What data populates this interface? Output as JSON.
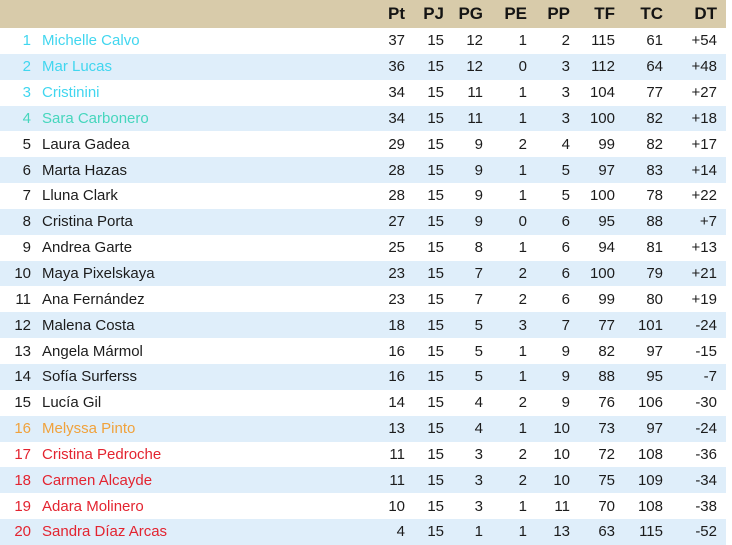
{
  "table": {
    "columns": [
      "Pt",
      "PJ",
      "PG",
      "PE",
      "PP",
      "TF",
      "TC",
      "DT"
    ],
    "rows": [
      {
        "rank": "1",
        "name": "Michelle Calvo",
        "zone": "cyan",
        "stats": [
          "37",
          "15",
          "12",
          "1",
          "2",
          "115",
          "61",
          "+54"
        ]
      },
      {
        "rank": "2",
        "name": "Mar Lucas",
        "zone": "cyan",
        "stats": [
          "36",
          "15",
          "12",
          "0",
          "3",
          "112",
          "64",
          "+48"
        ]
      },
      {
        "rank": "3",
        "name": "Cristinini",
        "zone": "cyan",
        "stats": [
          "34",
          "15",
          "11",
          "1",
          "3",
          "104",
          "77",
          "+27"
        ]
      },
      {
        "rank": "4",
        "name": "Sara Carbonero",
        "zone": "teal",
        "stats": [
          "34",
          "15",
          "11",
          "1",
          "3",
          "100",
          "82",
          "+18"
        ]
      },
      {
        "rank": "5",
        "name": "Laura Gadea",
        "zone": "none",
        "stats": [
          "29",
          "15",
          "9",
          "2",
          "4",
          "99",
          "82",
          "+17"
        ]
      },
      {
        "rank": "6",
        "name": "Marta Hazas",
        "zone": "none",
        "stats": [
          "28",
          "15",
          "9",
          "1",
          "5",
          "97",
          "83",
          "+14"
        ]
      },
      {
        "rank": "7",
        "name": "Lluna Clark",
        "zone": "none",
        "stats": [
          "28",
          "15",
          "9",
          "1",
          "5",
          "100",
          "78",
          "+22"
        ]
      },
      {
        "rank": "8",
        "name": "Cristina Porta",
        "zone": "none",
        "stats": [
          "27",
          "15",
          "9",
          "0",
          "6",
          "95",
          "88",
          "+7"
        ]
      },
      {
        "rank": "9",
        "name": "Andrea Garte",
        "zone": "none",
        "stats": [
          "25",
          "15",
          "8",
          "1",
          "6",
          "94",
          "81",
          "+13"
        ]
      },
      {
        "rank": "10",
        "name": "Maya Pixelskaya",
        "zone": "none",
        "stats": [
          "23",
          "15",
          "7",
          "2",
          "6",
          "100",
          "79",
          "+21"
        ]
      },
      {
        "rank": "11",
        "name": "Ana Fernández",
        "zone": "none",
        "stats": [
          "23",
          "15",
          "7",
          "2",
          "6",
          "99",
          "80",
          "+19"
        ]
      },
      {
        "rank": "12",
        "name": "Malena Costa",
        "zone": "none",
        "stats": [
          "18",
          "15",
          "5",
          "3",
          "7",
          "77",
          "101",
          "-24"
        ]
      },
      {
        "rank": "13",
        "name": "Angela Mármol",
        "zone": "none",
        "stats": [
          "16",
          "15",
          "5",
          "1",
          "9",
          "82",
          "97",
          "-15"
        ]
      },
      {
        "rank": "14",
        "name": "Sofía Surferss",
        "zone": "none",
        "stats": [
          "16",
          "15",
          "5",
          "1",
          "9",
          "88",
          "95",
          "-7"
        ]
      },
      {
        "rank": "15",
        "name": "Lucía Gil",
        "zone": "none",
        "stats": [
          "14",
          "15",
          "4",
          "2",
          "9",
          "76",
          "106",
          "-30"
        ]
      },
      {
        "rank": "16",
        "name": "Melyssa Pinto",
        "zone": "orange",
        "stats": [
          "13",
          "15",
          "4",
          "1",
          "10",
          "73",
          "97",
          "-24"
        ]
      },
      {
        "rank": "17",
        "name": "Cristina Pedroche",
        "zone": "red",
        "stats": [
          "11",
          "15",
          "3",
          "2",
          "10",
          "72",
          "108",
          "-36"
        ]
      },
      {
        "rank": "18",
        "name": "Carmen Alcayde",
        "zone": "red",
        "stats": [
          "11",
          "15",
          "3",
          "2",
          "10",
          "75",
          "109",
          "-34"
        ]
      },
      {
        "rank": "19",
        "name": "Adara Molinero",
        "zone": "red",
        "stats": [
          "10",
          "15",
          "3",
          "1",
          "11",
          "70",
          "108",
          "-38"
        ]
      },
      {
        "rank": "20",
        "name": "Sandra Díaz Arcas",
        "zone": "red",
        "stats": [
          "4",
          "15",
          "1",
          "1",
          "13",
          "63",
          "115",
          "-52"
        ]
      }
    ]
  },
  "colors": {
    "header_bg": "#d8cbaa",
    "stripe_blue": "#dfeefa",
    "row_white": "#ffffff",
    "text_default": "#1c1c1c",
    "zone_cyan": "#41d6ef",
    "zone_teal": "#46d6bd",
    "zone_orange": "#f0a23c",
    "zone_red": "#e32430"
  }
}
